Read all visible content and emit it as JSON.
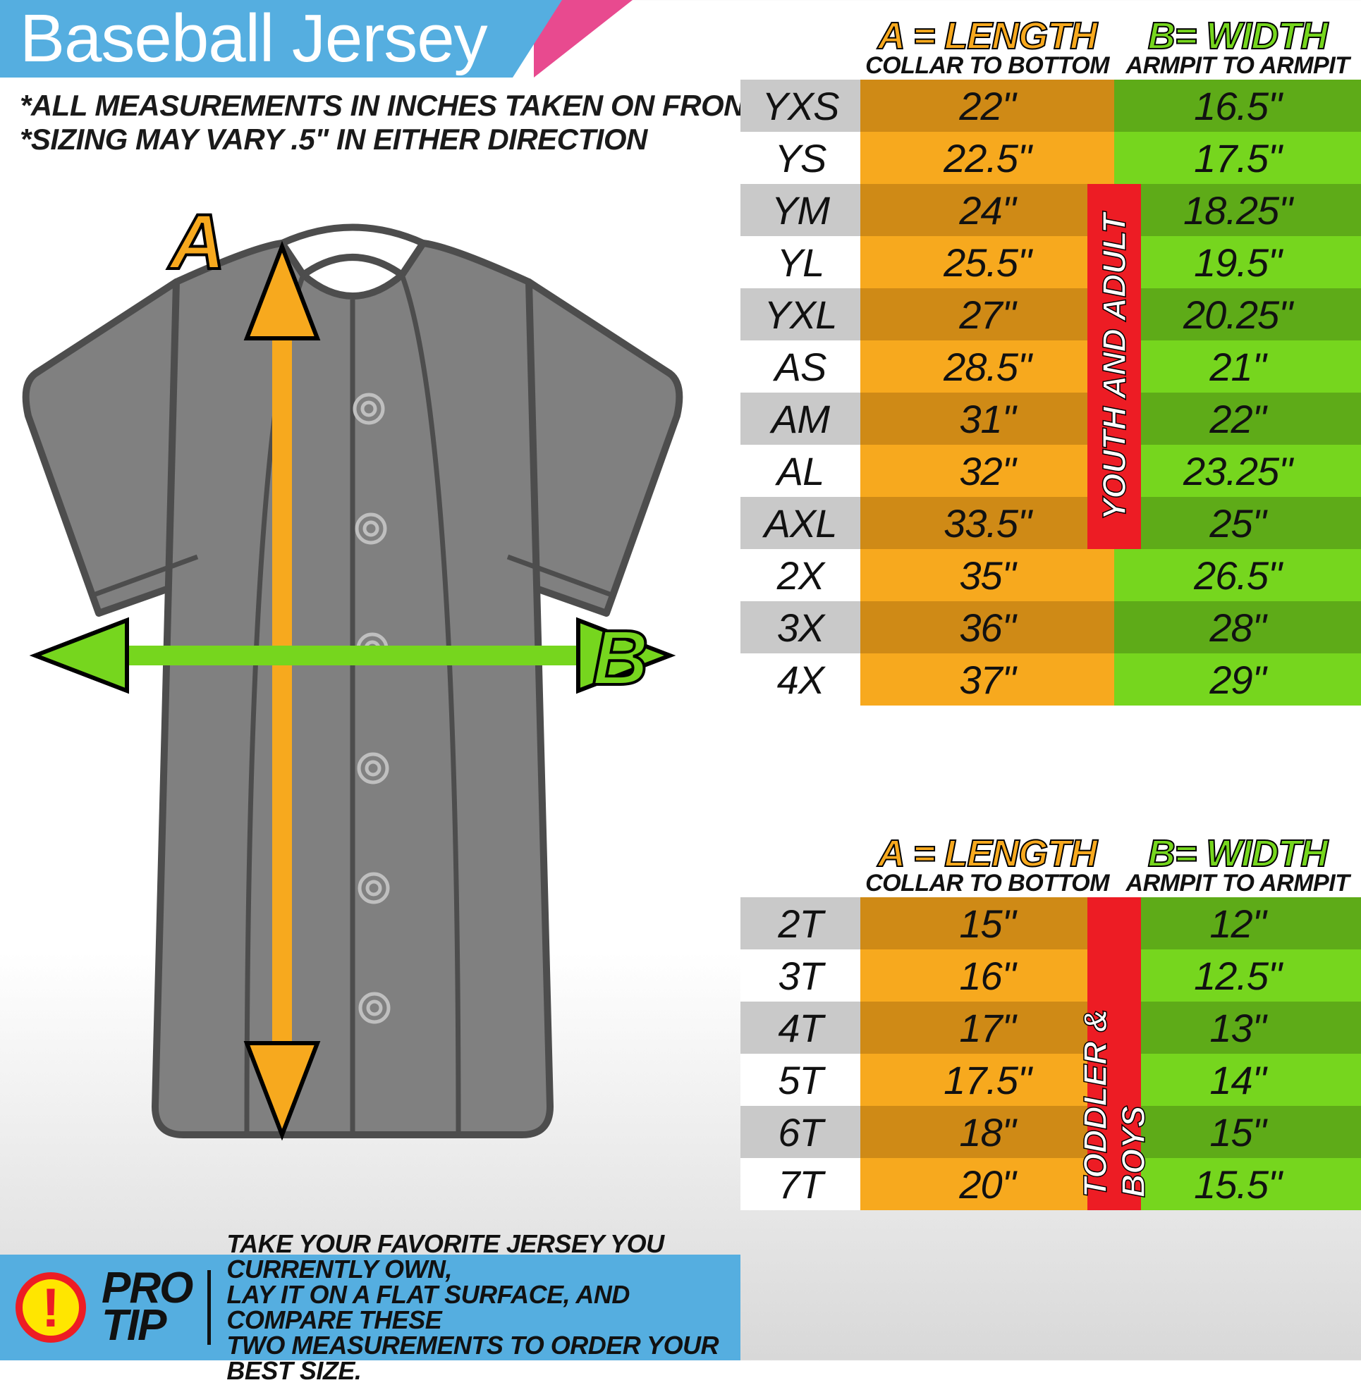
{
  "header": {
    "title": "Baseball Jersey"
  },
  "notes": {
    "line1": "*ALL MEASUREMENTS IN INCHES TAKEN ON FRONT OF JERSEY",
    "line2": "*SIZING MAY VARY .5\" IN EITHER DIRECTION"
  },
  "diagram": {
    "label_a": "A",
    "label_b": "B"
  },
  "colors": {
    "orange": "#f7a91e",
    "orange_dark": "#cf8a16",
    "green": "#76d61e",
    "green_dark": "#5eab18",
    "grey": "#c9c9c9",
    "white": "#ffffff",
    "red": "#ed1c24",
    "blue": "#55aee0",
    "pink": "#e84a8f",
    "jersey_fill": "#808080",
    "jersey_stroke": "#4d4d4d"
  },
  "table_headers": {
    "a_label": "A = LENGTH",
    "b_label": "B= WIDTH",
    "a_sub": "COLLAR TO BOTTOM",
    "b_sub": "ARMPIT TO ARMPIT"
  },
  "tables": [
    {
      "badge": "YOUTH AND ADULT",
      "badge_top_row": 2,
      "badge_span": 7,
      "rows": [
        {
          "size": "YXS",
          "length": "22\"",
          "width": "16.5\""
        },
        {
          "size": "YS",
          "length": "22.5\"",
          "width": "17.5\""
        },
        {
          "size": "YM",
          "length": "24\"",
          "width": "18.25\""
        },
        {
          "size": "YL",
          "length": "25.5\"",
          "width": "19.5\""
        },
        {
          "size": "YXL",
          "length": "27\"",
          "width": "20.25\""
        },
        {
          "size": "AS",
          "length": "28.5\"",
          "width": "21\""
        },
        {
          "size": "AM",
          "length": "31\"",
          "width": "22\""
        },
        {
          "size": "AL",
          "length": "32\"",
          "width": "23.25\""
        },
        {
          "size": "AXL",
          "length": "33.5\"",
          "width": "25\""
        },
        {
          "size": "2X",
          "length": "35\"",
          "width": "26.5\""
        },
        {
          "size": "3X",
          "length": "36\"",
          "width": "28\""
        },
        {
          "size": "4X",
          "length": "37\"",
          "width": "29\""
        }
      ]
    },
    {
      "badge": "TODDLER & BOYS",
      "badge_top_row": 0,
      "badge_span": 6,
      "rows": [
        {
          "size": "2T",
          "length": "15\"",
          "width": "12\""
        },
        {
          "size": "3T",
          "length": "16\"",
          "width": "12.5\""
        },
        {
          "size": "4T",
          "length": "17\"",
          "width": "13\""
        },
        {
          "size": "5T",
          "length": "17.5\"",
          "width": "14\""
        },
        {
          "size": "6T",
          "length": "18\"",
          "width": "15\""
        },
        {
          "size": "7T",
          "length": "20\"",
          "width": "15.5\""
        }
      ]
    }
  ],
  "protip": {
    "label_1": "PRO",
    "label_2": "TIP",
    "text_1": "TAKE YOUR FAVORITE JERSEY YOU CURRENTLY OWN,",
    "text_2": "LAY IT ON A FLAT SURFACE, AND COMPARE THESE",
    "text_3": "TWO MEASUREMENTS TO ORDER YOUR BEST SIZE."
  }
}
